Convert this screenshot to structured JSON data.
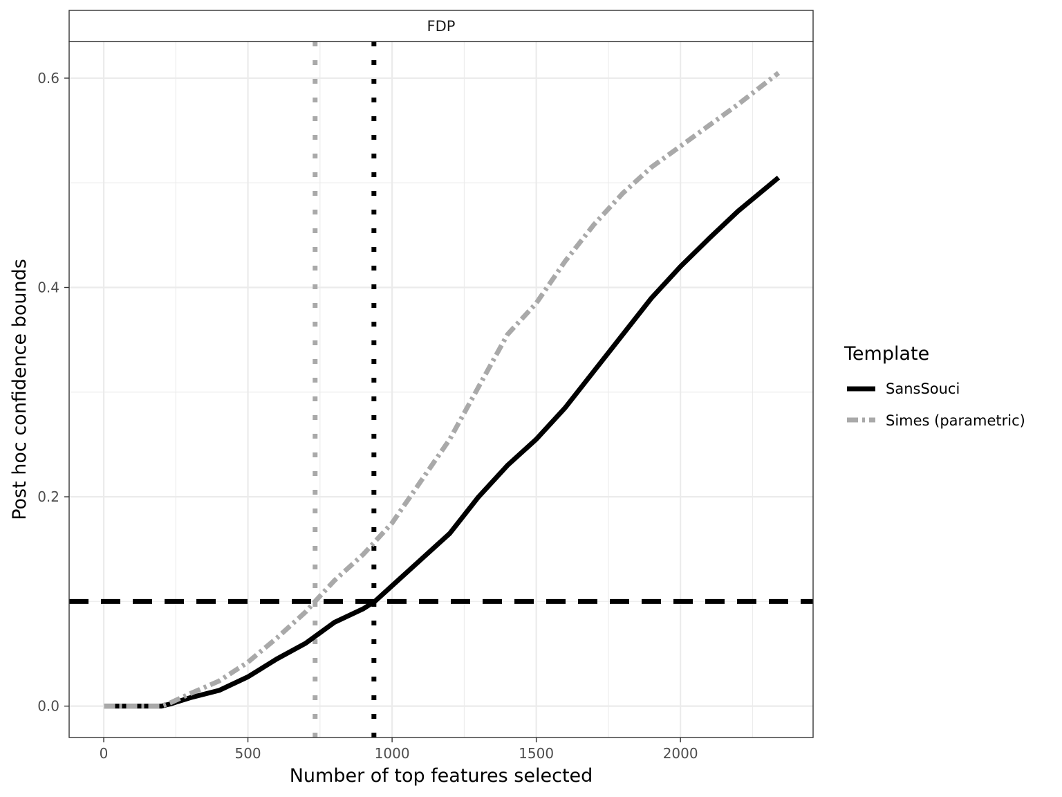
{
  "chart_data": {
    "type": "line",
    "facet_label": "FDP",
    "xlabel": "Number of top features selected",
    "ylabel": "Post hoc confidence bounds",
    "xlim": [
      -120,
      2460
    ],
    "ylim": [
      -0.03,
      0.635
    ],
    "x_ticks": [
      0,
      500,
      1000,
      1500,
      2000
    ],
    "x_tick_labels": [
      "0",
      "500",
      "1000",
      "1500",
      "2000"
    ],
    "y_ticks": [
      0.0,
      0.2,
      0.4,
      0.6
    ],
    "y_tick_labels": [
      "0.0",
      "0.2",
      "0.4",
      "0.6"
    ],
    "grid": true,
    "legend": {
      "title": "Template",
      "position": "right",
      "entries": [
        "SansSouci",
        "Simes (parametric)"
      ]
    },
    "series": [
      {
        "name": "SansSouci",
        "color": "#000000",
        "linestyle": "solid",
        "x": [
          1,
          100,
          200,
          230,
          300,
          400,
          500,
          600,
          700,
          800,
          900,
          940,
          1000,
          1100,
          1200,
          1300,
          1400,
          1500,
          1600,
          1700,
          1800,
          1900,
          2000,
          2100,
          2200,
          2340
        ],
        "y": [
          0.0,
          0.0,
          0.0,
          0.002,
          0.008,
          0.015,
          0.028,
          0.045,
          0.06,
          0.08,
          0.093,
          0.1,
          0.115,
          0.14,
          0.165,
          0.2,
          0.23,
          0.255,
          0.285,
          0.32,
          0.355,
          0.39,
          0.42,
          0.447,
          0.473,
          0.505
        ]
      },
      {
        "name": "Simes (parametric)",
        "color": "#a9a9a9",
        "linestyle": "dashdot",
        "x": [
          1,
          100,
          200,
          230,
          300,
          400,
          500,
          600,
          700,
          733,
          800,
          900,
          1000,
          1100,
          1200,
          1300,
          1400,
          1500,
          1600,
          1700,
          1800,
          1900,
          2000,
          2100,
          2200,
          2340
        ],
        "y": [
          0.0,
          0.0,
          0.0,
          0.003,
          0.012,
          0.024,
          0.042,
          0.065,
          0.09,
          0.1,
          0.12,
          0.145,
          0.175,
          0.215,
          0.255,
          0.305,
          0.355,
          0.385,
          0.425,
          0.46,
          0.49,
          0.515,
          0.535,
          0.555,
          0.575,
          0.605
        ]
      }
    ],
    "reference_lines": [
      {
        "orientation": "horizontal",
        "value": 0.1,
        "color": "#000000",
        "linestyle": "dashed"
      },
      {
        "orientation": "vertical",
        "value": 733,
        "color": "#a9a9a9",
        "linestyle": "dotted"
      },
      {
        "orientation": "vertical",
        "value": 937,
        "color": "#000000",
        "linestyle": "dotted"
      }
    ]
  }
}
